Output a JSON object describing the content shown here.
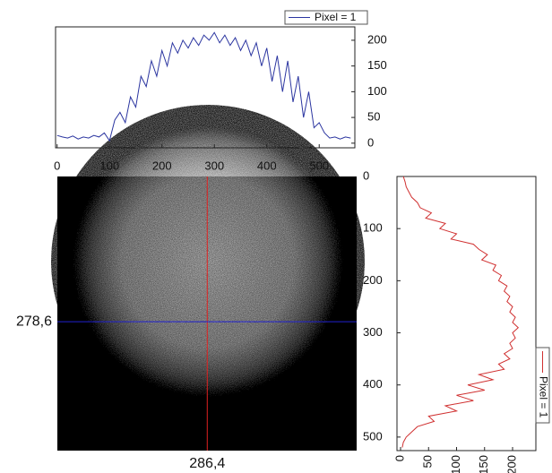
{
  "chart_data": [
    {
      "type": "line",
      "x": [
        0,
        10,
        20,
        30,
        40,
        50,
        60,
        70,
        80,
        90,
        100,
        110,
        120,
        130,
        140,
        150,
        160,
        170,
        180,
        190,
        200,
        210,
        220,
        230,
        240,
        250,
        260,
        270,
        280,
        290,
        300,
        310,
        320,
        330,
        340,
        350,
        360,
        370,
        380,
        390,
        400,
        410,
        420,
        430,
        440,
        450,
        460,
        470,
        480,
        490,
        500,
        510,
        520,
        530,
        540,
        550,
        560
      ],
      "series": [
        {
          "name": "Pixel = 1",
          "color": "#2b35a0",
          "values": [
            15,
            12,
            10,
            14,
            8,
            12,
            10,
            15,
            12,
            20,
            5,
            45,
            60,
            40,
            90,
            70,
            130,
            110,
            160,
            130,
            180,
            150,
            195,
            175,
            200,
            185,
            205,
            190,
            210,
            200,
            215,
            195,
            210,
            190,
            205,
            180,
            200,
            170,
            195,
            150,
            185,
            120,
            170,
            100,
            160,
            80,
            130,
            50,
            100,
            30,
            40,
            20,
            10,
            12,
            8,
            12,
            10
          ]
        }
      ],
      "xlim": [
        -3,
        568
      ],
      "ylim": [
        -9,
        226
      ],
      "xticks": [
        0,
        100,
        200,
        300,
        400,
        500
      ],
      "yticks": [
        0,
        50,
        100,
        150,
        200
      ]
    },
    {
      "type": "image",
      "crosshair_colors": {
        "vertical": "#e02020",
        "horizontal": "#2020d0"
      },
      "crosshair": {
        "x": {
          "value": 286.4,
          "label": "286,4"
        },
        "y": {
          "value": 278.6,
          "label": "278,6"
        }
      }
    },
    {
      "type": "line",
      "x": [
        0,
        10,
        20,
        30,
        40,
        50,
        60,
        70,
        80,
        90,
        100,
        110,
        120,
        130,
        140,
        150,
        160,
        170,
        180,
        190,
        200,
        210,
        220,
        230,
        240,
        250,
        260,
        270,
        280,
        290,
        300,
        310,
        320,
        330,
        340,
        350,
        360,
        370,
        380,
        390,
        400,
        410,
        420,
        430,
        440,
        450,
        460,
        470,
        480,
        490,
        500,
        510,
        520
      ],
      "series": [
        {
          "name": "Pixel = 1",
          "color": "#d03030",
          "values": [
            5,
            8,
            10,
            15,
            20,
            30,
            35,
            55,
            45,
            80,
            70,
            100,
            90,
            130,
            140,
            155,
            145,
            170,
            165,
            180,
            175,
            190,
            185,
            195,
            190,
            200,
            195,
            205,
            200,
            210,
            200,
            205,
            195,
            200,
            185,
            195,
            175,
            185,
            140,
            165,
            120,
            150,
            100,
            130,
            80,
            100,
            50,
            60,
            30,
            20,
            10,
            5,
            3
          ]
        }
      ],
      "vlim": [
        -6.4,
        241.6
      ],
      "plim": [
        0,
        526
      ],
      "vticks": [
        0,
        50,
        100,
        150,
        200
      ],
      "pticks": [
        0,
        100,
        200,
        300,
        400,
        500
      ]
    }
  ]
}
